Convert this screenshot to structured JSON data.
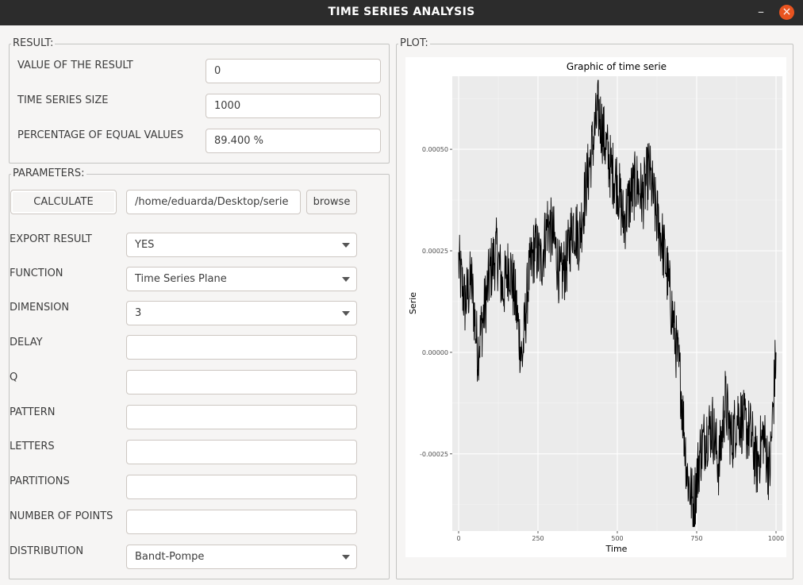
{
  "window": {
    "title": "TIME SERIES ANALYSIS",
    "minimize_icon": "minimize-icon",
    "close_icon": "close-icon"
  },
  "result": {
    "group_title": "RESULT:",
    "value_label": "VALUE OF THE RESULT",
    "value": "0",
    "size_label": "TIME SERIES SIZE",
    "size": "1000",
    "percentage_label": "PERCENTAGE OF EQUAL VALUES",
    "percentage": "89.400 %"
  },
  "parameters": {
    "group_title": "PARAMETERS:",
    "calculate_label": "CALCULATE",
    "path": "/home/eduarda/Desktop/serie",
    "browse_label": "browse",
    "export_label": "EXPORT RESULT",
    "export_value": "YES",
    "function_label": "FUNCTION",
    "function_value": "Time Series Plane",
    "dimension_label": "DIMENSION",
    "dimension_value": "3",
    "delay_label": "DELAY",
    "delay_value": "",
    "q_label": "Q",
    "q_value": "",
    "pattern_label": "PATTERN",
    "pattern_value": "",
    "letters_label": "LETTERS",
    "letters_value": "",
    "partitions_label": "PARTITIONS",
    "partitions_value": "",
    "points_label": "NUMBER OF POINTS",
    "points_value": "",
    "distribution_label": "DISTRIBUTION",
    "distribution_value": "Bandt-Pompe"
  },
  "plot": {
    "group_title": "PLOT:"
  },
  "chart_data": {
    "type": "line",
    "title": "Graphic of time serie",
    "xlabel": "Time",
    "ylabel": "Serie",
    "xlim": [
      -20,
      1020
    ],
    "ylim": [
      -0.00044,
      0.00068
    ],
    "x_ticks": [
      0,
      250,
      500,
      750,
      1000
    ],
    "y_ticks": [
      -0.00025,
      0,
      0.00025,
      0.0005
    ],
    "x_tick_labels": [
      "0",
      "250",
      "500",
      "750",
      "1000"
    ],
    "y_tick_labels": [
      "-0.00025",
      "0.00000",
      "0.00025",
      "0.00050"
    ],
    "grid": true,
    "panel_background": "#ebebeb",
    "line_color": "#000000",
    "series": [
      {
        "x": [
          0,
          20,
          40,
          60,
          80,
          100,
          120,
          140,
          160,
          180,
          200,
          220,
          240,
          260,
          280,
          300,
          320,
          340,
          360,
          380,
          400,
          420,
          440,
          460,
          480,
          500,
          520,
          540,
          560,
          580,
          600,
          620,
          640,
          660,
          680,
          700,
          720,
          740,
          760,
          780,
          800,
          820,
          840,
          860,
          880,
          900,
          920,
          940,
          960,
          980,
          1000
        ],
        "values": [
          0.00022,
          0.00012,
          0.00018,
          0.0,
          0.0001,
          0.0002,
          0.00025,
          0.00015,
          0.00022,
          0.00012,
          -2e-05,
          0.00018,
          0.00026,
          0.00022,
          0.00032,
          0.00028,
          0.00018,
          0.00022,
          0.00032,
          0.00028,
          0.0004,
          0.0005,
          0.0006,
          0.00052,
          0.00045,
          0.00042,
          0.00032,
          0.00038,
          0.00042,
          0.00038,
          0.00045,
          0.00035,
          0.00028,
          0.00018,
          5e-05,
          -8e-05,
          -0.0003,
          -0.00038,
          -0.00025,
          -0.0002,
          -0.00018,
          -0.00028,
          -0.00012,
          -0.00022,
          -0.00015,
          -0.00018,
          -0.0002,
          -0.00028,
          -0.0002,
          -0.0003,
          0.0
        ]
      }
    ]
  }
}
